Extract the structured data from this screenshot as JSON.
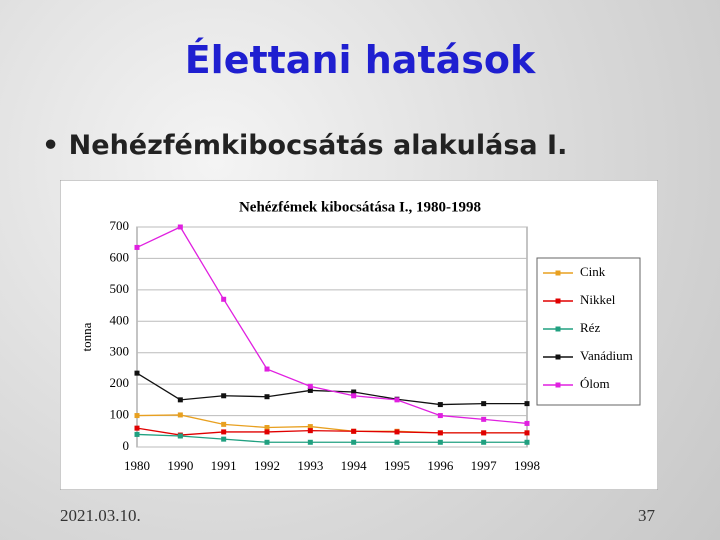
{
  "slide": {
    "title": "Élettani hatások",
    "bullet": "• Nehézfémkibocsátás alakulása I.",
    "date": "2021.03.10.",
    "page_number": "37"
  },
  "chart_data": {
    "type": "line",
    "title": "Nehézfémek kibocsátása I., 1980-1998",
    "y_label": "tonna",
    "categories": [
      "1980",
      "1990",
      "1991",
      "1992",
      "1993",
      "1994",
      "1995",
      "1996",
      "1997",
      "1998"
    ],
    "ylim": [
      0,
      700
    ],
    "yticks": [
      0,
      100,
      200,
      300,
      400,
      500,
      600,
      700
    ],
    "grid": true,
    "legend": "right",
    "series": [
      {
        "name": "Cink",
        "color": "#e8a020",
        "values": [
          100,
          102,
          72,
          62,
          65,
          50,
          50,
          45,
          45,
          45
        ]
      },
      {
        "name": "Nikkel",
        "color": "#e00000",
        "values": [
          60,
          38,
          48,
          48,
          52,
          50,
          48,
          45,
          45,
          45
        ]
      },
      {
        "name": "Réz",
        "color": "#20a080",
        "values": [
          40,
          35,
          25,
          15,
          15,
          15,
          15,
          15,
          15,
          15
        ]
      },
      {
        "name": "Vanádium",
        "color": "#111111",
        "values": [
          235,
          150,
          163,
          160,
          180,
          175,
          152,
          135,
          138,
          138
        ]
      },
      {
        "name": "Ólom",
        "color": "#e020e0",
        "values": [
          635,
          700,
          470,
          248,
          193,
          163,
          150,
          100,
          88,
          75
        ]
      }
    ]
  }
}
